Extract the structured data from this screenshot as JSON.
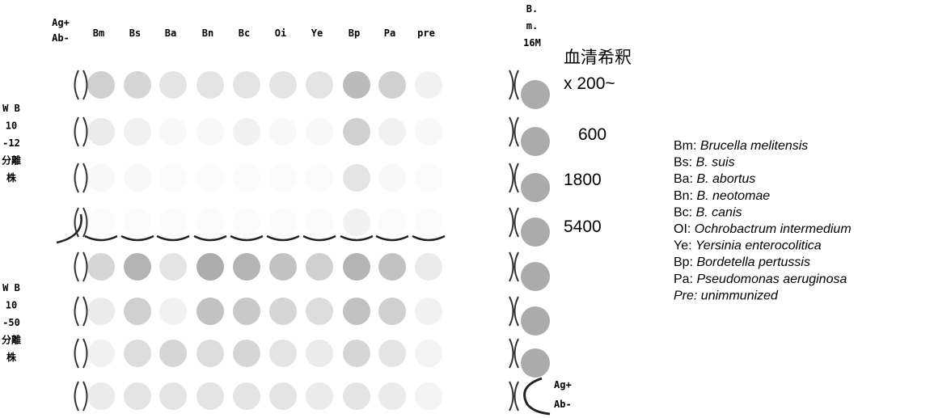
{
  "column_headers": [
    "Bm",
    "Bs",
    "Ba",
    "Bn",
    "Bc",
    "Oi",
    "Ye",
    "Bp",
    "Pa",
    "pre"
  ],
  "left_header": [
    "Ag+",
    "Ab-"
  ],
  "right_header": [
    "B.",
    "m.",
    "16M"
  ],
  "row_groups": [
    [
      "W B",
      "10",
      "-12",
      "分離",
      "株"
    ],
    [
      "W B",
      "10",
      "-50",
      "分離",
      "株"
    ]
  ],
  "dilution": {
    "title": "血清希釈",
    "values": [
      "x 200~",
      "600",
      "1800",
      "5400"
    ]
  },
  "bottom_right": [
    "Ag+",
    "Ab-"
  ],
  "legend": [
    {
      "abbr": "Bm:",
      "name": "Brucella melitensis"
    },
    {
      "abbr": "Bs:",
      "name": "B. suis"
    },
    {
      "abbr": "Ba:",
      "name": "B. abortus"
    },
    {
      "abbr": "Bn:",
      "name": "B. neotomae"
    },
    {
      "abbr": "Bc:",
      "name": "B. canis"
    },
    {
      "abbr": "OI:",
      "name": "Ochrobactrum intermedium"
    },
    {
      "abbr": "Ye:",
      "name": "Yersinia enterocolitica"
    },
    {
      "abbr": "Bp:",
      "name": "Bordetella pertussis"
    },
    {
      "abbr": "Pa:",
      "name": "Pseudomonas aeruginosa"
    },
    {
      "abbr": "Pre:",
      "name": "unimmunized"
    }
  ]
}
